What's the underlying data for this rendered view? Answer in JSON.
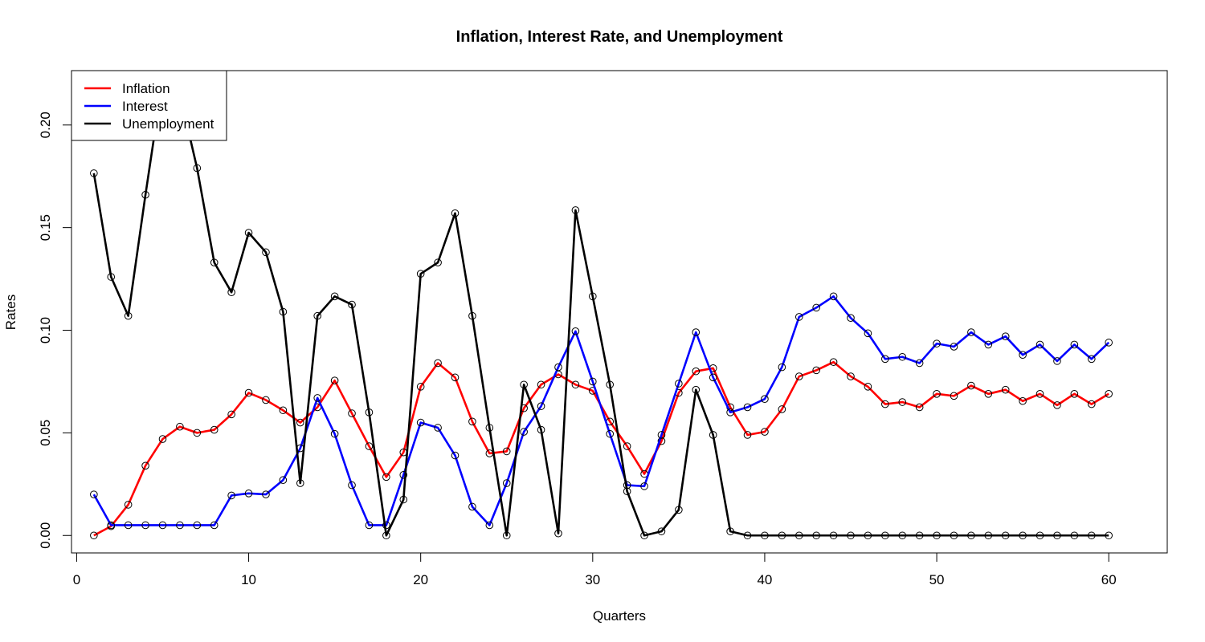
{
  "chart_data": {
    "type": "line",
    "title": "Inflation, Interest Rate, and Unemployment",
    "xlabel": "Quarters",
    "ylabel": "Rates",
    "xlim": [
      -0.3,
      63.4
    ],
    "ylim": [
      -0.0085,
      0.2265
    ],
    "xticks": [
      0,
      10,
      20,
      30,
      40,
      50,
      60
    ],
    "yticks": [
      0.0,
      0.05,
      0.1,
      0.15,
      0.2
    ],
    "ytick_labels": [
      "0.00",
      "0.05",
      "0.10",
      "0.15",
      "0.20"
    ],
    "grid": false,
    "markers": "open circles",
    "legend": {
      "position": "top-left",
      "entries": [
        "Inflation",
        "Interest",
        "Unemployment"
      ]
    },
    "x": [
      1,
      2,
      3,
      4,
      5,
      6,
      7,
      8,
      9,
      10,
      11,
      12,
      13,
      14,
      15,
      16,
      17,
      18,
      19,
      20,
      21,
      22,
      23,
      24,
      25,
      26,
      27,
      28,
      29,
      30,
      31,
      32,
      33,
      34,
      35,
      36,
      37,
      38,
      39,
      40,
      41,
      42,
      43,
      44,
      45,
      46,
      47,
      48,
      49,
      50,
      51,
      52,
      53,
      54,
      55,
      56,
      57,
      58,
      59,
      60
    ],
    "series": [
      {
        "name": "Inflation",
        "color": "#ff0000",
        "values": [
          0.0,
          0.0045,
          0.015,
          0.034,
          0.047,
          0.053,
          0.05,
          0.0515,
          0.059,
          0.0695,
          0.066,
          0.061,
          0.055,
          0.0625,
          0.0755,
          0.0595,
          0.0435,
          0.0285,
          0.0405,
          0.0725,
          0.084,
          0.077,
          0.0555,
          0.04,
          0.041,
          0.062,
          0.0735,
          0.0785,
          0.0735,
          0.0705,
          0.0555,
          0.0435,
          0.03,
          0.046,
          0.0695,
          0.08,
          0.0815,
          0.0625,
          0.049,
          0.0505,
          0.0615,
          0.0775,
          0.0805,
          0.0845,
          0.0775,
          0.0725,
          0.064,
          0.065,
          0.0625,
          0.069,
          0.068,
          0.073,
          0.069,
          0.071,
          0.0655,
          0.069,
          0.0635,
          0.069,
          0.064,
          0.069
        ]
      },
      {
        "name": "Interest",
        "color": "#0000ff",
        "values": [
          0.02,
          0.005,
          0.005,
          0.005,
          0.005,
          0.005,
          0.005,
          0.005,
          0.0195,
          0.0205,
          0.02,
          0.027,
          0.0425,
          0.067,
          0.0495,
          0.0245,
          0.005,
          0.005,
          0.0295,
          0.055,
          0.0525,
          0.039,
          0.014,
          0.005,
          0.0255,
          0.0505,
          0.063,
          0.082,
          0.0995,
          0.075,
          0.0495,
          0.0245,
          0.024,
          0.049,
          0.074,
          0.099,
          0.077,
          0.06,
          0.0625,
          0.0665,
          0.082,
          0.1065,
          0.111,
          0.1165,
          0.106,
          0.0985,
          0.086,
          0.087,
          0.084,
          0.0935,
          0.092,
          0.099,
          0.093,
          0.097,
          0.088,
          0.093,
          0.085,
          0.093,
          0.086,
          0.094
        ]
      },
      {
        "name": "Unemployment",
        "color": "#000000",
        "values": [
          0.1765,
          0.126,
          0.107,
          0.166,
          0.222,
          0.215,
          0.179,
          0.133,
          0.1185,
          0.1475,
          0.138,
          0.109,
          0.0255,
          0.107,
          0.1165,
          0.1125,
          0.06,
          0.0,
          0.0175,
          0.1275,
          0.133,
          0.157,
          0.107,
          0.0525,
          0.0,
          0.0735,
          0.0515,
          0.001,
          0.1585,
          0.1165,
          0.0735,
          0.0215,
          0.0,
          0.002,
          0.0125,
          0.071,
          0.049,
          0.002,
          0.0,
          0.0,
          0.0,
          0.0,
          0.0,
          0.0,
          0.0,
          0.0,
          0.0,
          0.0,
          0.0,
          0.0,
          0.0,
          0.0,
          0.0,
          0.0,
          0.0,
          0.0,
          0.0,
          0.0,
          0.0,
          0.0
        ]
      }
    ]
  }
}
